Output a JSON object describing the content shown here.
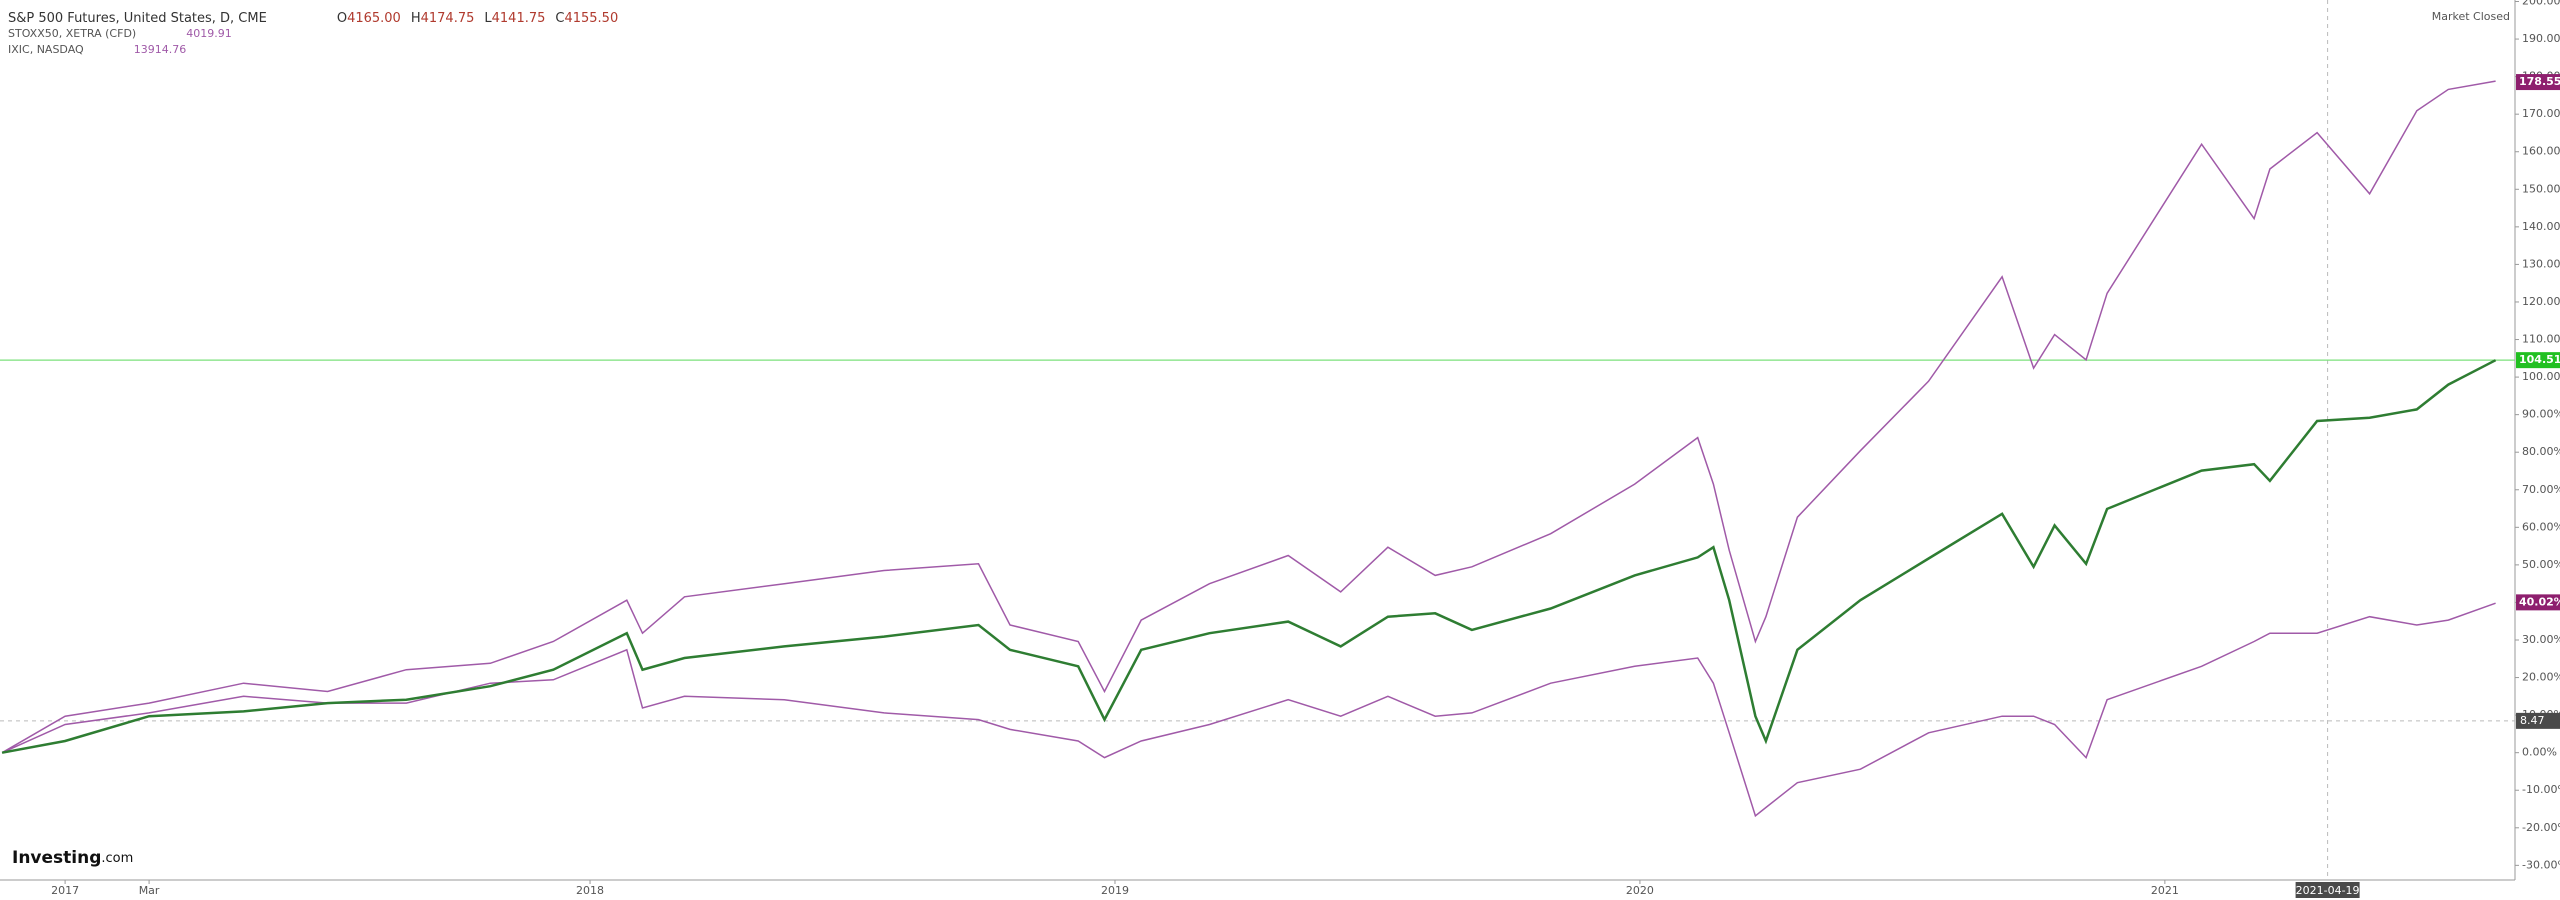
{
  "chart_data": {
    "type": "line",
    "status": "Market Closed",
    "logo": "Investing",
    "logo_suffix": ".com",
    "xlim": [
      2016.876,
      2021.667
    ],
    "ylim": [
      -33.9,
      200.4
    ],
    "xticks": [
      2017,
      {
        "value": 2017.16,
        "label": "Mar"
      },
      2018,
      2019,
      2020,
      2021
    ],
    "yticks": [
      {
        "value": -30,
        "label": "-30.00%"
      },
      {
        "value": -20,
        "label": "-20.00%"
      },
      {
        "value": -10,
        "label": "-10.00%"
      },
      {
        "value": 0,
        "label": "0.00%"
      },
      {
        "value": 10,
        "label": "10.00%"
      },
      {
        "value": 20,
        "label": "20.00%"
      },
      {
        "value": 30,
        "label": "30.00%"
      },
      {
        "value": 40,
        "label": "40.00%"
      },
      {
        "value": 50,
        "label": "50.00%"
      },
      {
        "value": 60,
        "label": "60.00%"
      },
      {
        "value": 70,
        "label": "70.00%"
      },
      {
        "value": 80,
        "label": "80.00%"
      },
      {
        "value": 90,
        "label": "90.00%"
      },
      {
        "value": 100,
        "label": "100.00%"
      },
      {
        "value": 110,
        "label": "110.00%"
      },
      {
        "value": 120,
        "label": "120.00%"
      },
      {
        "value": 130,
        "label": "130.00%"
      },
      {
        "value": 140,
        "label": "140.00%"
      },
      {
        "value": 150,
        "label": "150.00%"
      },
      {
        "value": 160,
        "label": "160.00%"
      },
      {
        "value": 170,
        "label": "170.00%"
      },
      {
        "value": 180,
        "label": "180.00%"
      },
      {
        "value": 190,
        "label": "190.00%"
      },
      {
        "value": 200,
        "label": "200.00%"
      }
    ],
    "crosshair": {
      "x": {
        "value": 2021.31,
        "label": "2021-04-19"
      },
      "y": 8.47
    },
    "x": [
      2016.88,
      2017.0,
      2017.16,
      2017.34,
      2017.5,
      2017.65,
      2017.81,
      2017.93,
      2018.07,
      2018.1,
      2018.18,
      2018.37,
      2018.56,
      2018.74,
      2018.8,
      2018.93,
      2018.98,
      2019.05,
      2019.18,
      2019.33,
      2019.43,
      2019.52,
      2019.61,
      2019.68,
      2019.83,
      2019.99,
      2020.11,
      2020.14,
      2020.17,
      2020.22,
      2020.24,
      2020.3,
      2020.42,
      2020.55,
      2020.69,
      2020.75,
      2020.79,
      2020.85,
      2020.89,
      2021.07,
      2021.17,
      2021.2,
      2021.29,
      2021.39,
      2021.48,
      2021.54,
      2021.63
    ],
    "series": [
      {
        "name": "S&P 500 Futures, United States, D, CME",
        "color": "#2e7d32",
        "ohlc_labels": [
          "O",
          "H",
          "L",
          "C"
        ],
        "ohlc": [
          "4165.00",
          "4174.75",
          "4141.75",
          "4155.50"
        ],
        "last": {
          "value": 104.51,
          "label": "104.51%"
        },
        "badge_color": "#22c022",
        "values": [
          0.0,
          3.1,
          9.7,
          11.0,
          13.2,
          14.1,
          17.7,
          22.1,
          31.8,
          22.1,
          25.2,
          28.3,
          30.9,
          34.0,
          27.4,
          23.0,
          8.8,
          27.4,
          31.8,
          34.9,
          28.3,
          36.2,
          37.1,
          32.7,
          38.4,
          47.2,
          52.0,
          54.7,
          40.6,
          9.7,
          3.1,
          27.4,
          40.6,
          51.7,
          63.6,
          49.5,
          60.5,
          50.3,
          64.9,
          75.1,
          76.8,
          72.4,
          88.3,
          89.2,
          91.4,
          98.0,
          104.5
        ]
      },
      {
        "name": "STOXX50, XETRA (CFD)",
        "color": "#a05aa8",
        "header_value": "4019.91",
        "last": {
          "value": 40.02,
          "label": "40.02%"
        },
        "badge_color": "#8e1f6e",
        "values": [
          0.0,
          7.5,
          10.6,
          15.0,
          13.2,
          13.2,
          18.5,
          19.4,
          27.4,
          11.9,
          15.0,
          14.1,
          10.6,
          8.8,
          6.2,
          3.1,
          -1.3,
          3.1,
          7.5,
          14.1,
          9.7,
          15.0,
          9.7,
          10.6,
          18.5,
          23.0,
          25.2,
          18.5,
          5.3,
          -16.8,
          -14.6,
          -8.0,
          -4.4,
          5.3,
          9.7,
          9.7,
          7.5,
          -1.3,
          14.1,
          23.0,
          29.6,
          31.8,
          31.8,
          36.2,
          34.0,
          35.3,
          39.8
        ]
      },
      {
        "name": "IXIC, NASDAQ",
        "color": "#a05aa8",
        "header_value": "13914.76",
        "last": {
          "value": 178.55,
          "label": "178.55%"
        },
        "badge_color": "#8e1f6e",
        "values": [
          0.0,
          9.7,
          13.2,
          18.5,
          16.3,
          22.1,
          23.8,
          29.6,
          40.6,
          31.8,
          41.5,
          45.0,
          48.5,
          50.3,
          34.0,
          29.6,
          16.3,
          35.3,
          45.0,
          52.5,
          42.8,
          54.7,
          47.2,
          49.5,
          58.3,
          71.5,
          83.9,
          71.5,
          53.9,
          29.6,
          36.2,
          62.7,
          80.4,
          98.9,
          126.7,
          102.4,
          111.3,
          104.6,
          122.3,
          162.0,
          142.2,
          155.4,
          165.1,
          148.8,
          170.9,
          176.6,
          178.8
        ]
      }
    ]
  }
}
